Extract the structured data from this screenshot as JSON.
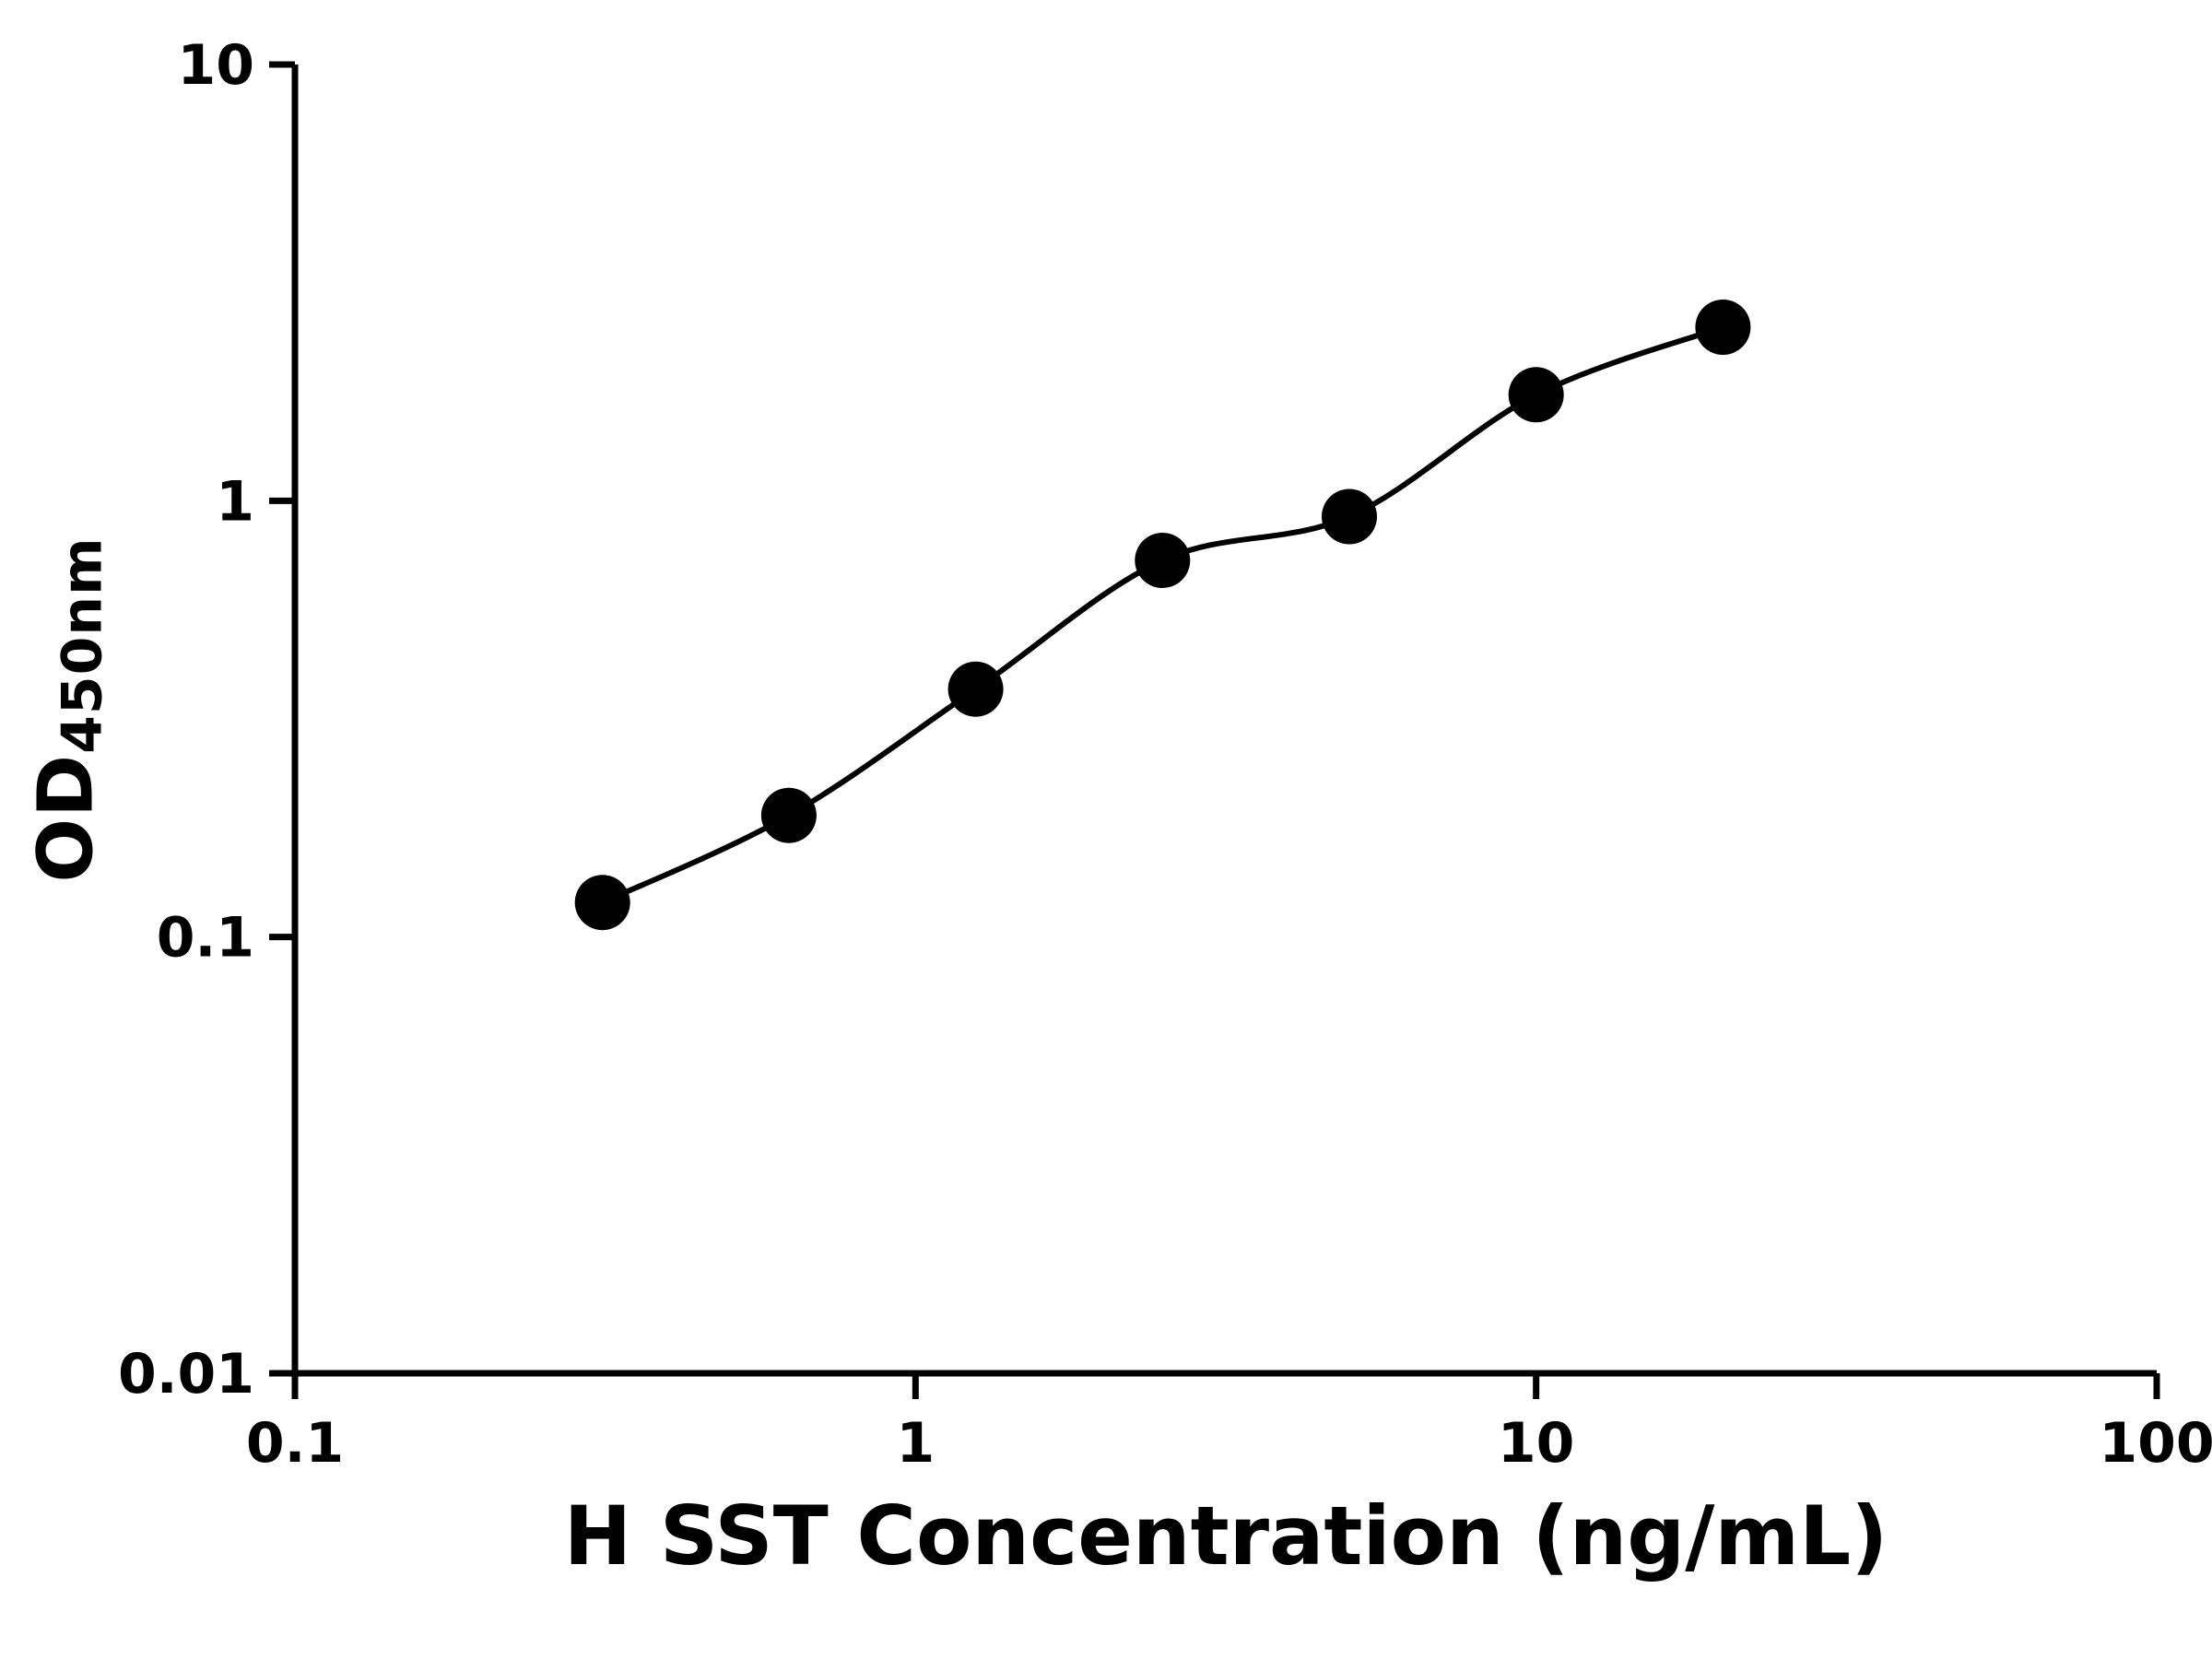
{
  "chart_data": {
    "type": "scatter",
    "title": "",
    "xlabel": "H SST Concentration (ng/mL)",
    "ylabel": "OD450nm",
    "ylabel_base": "OD",
    "ylabel_sub": "450nm",
    "x": [
      0.313,
      0.625,
      1.25,
      2.5,
      5,
      10,
      20
    ],
    "y": [
      0.12,
      0.19,
      0.37,
      0.73,
      0.92,
      1.75,
      2.5
    ],
    "xscale": "log",
    "yscale": "log",
    "xlim": [
      0.1,
      100
    ],
    "ylim": [
      0.01,
      10
    ],
    "x_ticks": [
      "0.1",
      "1",
      "10",
      "100"
    ],
    "y_ticks": [
      "10",
      "1",
      "0.1",
      "0.01"
    ],
    "grid": false,
    "legend": "none",
    "axis_color": "#000000",
    "line_color": "#000000",
    "marker_color": "#000000"
  }
}
